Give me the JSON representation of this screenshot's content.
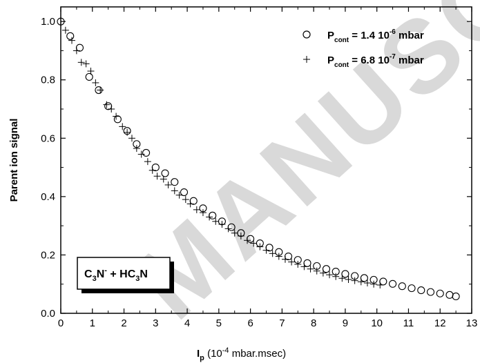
{
  "chart_data": {
    "type": "scatter",
    "xlabel": {
      "main": "I",
      "sub": "p",
      "pre": " (10",
      "sup": "-4",
      "post": " mbar.msec)"
    },
    "ylabel": "Parent ion signal",
    "xlim": [
      0,
      13
    ],
    "ylim": [
      0,
      1.05
    ],
    "x_ticks": [
      0,
      1,
      2,
      3,
      4,
      5,
      6,
      7,
      8,
      9,
      10,
      11,
      12,
      13
    ],
    "y_ticks": [
      0.0,
      0.2,
      0.4,
      0.6,
      0.8,
      1.0
    ],
    "y_tick_labels": [
      "0.0",
      "0.2",
      "0.4",
      "0.6",
      "0.8",
      "1.0"
    ],
    "grid": false,
    "legend_position": "top-right",
    "annotation": {
      "a": "C",
      "a_sub": "3",
      "b": "N",
      "b_sup": "-",
      "c": " + HC",
      "c_sub": "3",
      "d": "N"
    },
    "watermark": "MANUSC",
    "series": [
      {
        "name": {
          "p": "P",
          "sub": "cont",
          "val": " = 1.4 10",
          "sup": "-6",
          "unit": " mbar"
        },
        "marker": "circle",
        "x": [
          0.0,
          0.3,
          0.6,
          0.9,
          1.2,
          1.5,
          1.8,
          2.1,
          2.4,
          2.7,
          3.0,
          3.3,
          3.6,
          3.9,
          4.2,
          4.5,
          4.8,
          5.1,
          5.4,
          5.7,
          6.0,
          6.3,
          6.6,
          6.9,
          7.2,
          7.5,
          7.8,
          8.1,
          8.4,
          8.7,
          9.0,
          9.3,
          9.6,
          9.9,
          10.2,
          10.5,
          10.8,
          11.1,
          11.4,
          11.7,
          12.0,
          12.3,
          12.5
        ],
        "y": [
          1.0,
          0.95,
          0.91,
          0.81,
          0.765,
          0.71,
          0.665,
          0.625,
          0.58,
          0.55,
          0.5,
          0.48,
          0.45,
          0.415,
          0.385,
          0.36,
          0.335,
          0.315,
          0.295,
          0.275,
          0.255,
          0.24,
          0.225,
          0.21,
          0.195,
          0.183,
          0.172,
          0.162,
          0.152,
          0.143,
          0.135,
          0.128,
          0.121,
          0.115,
          0.109,
          0.101,
          0.093,
          0.086,
          0.079,
          0.073,
          0.068,
          0.063,
          0.058
        ]
      },
      {
        "name": {
          "p": "P",
          "sub": "cont",
          "val": " = 6.8 10",
          "sup": "-7",
          "unit": " mbar"
        },
        "marker": "plus",
        "x": [
          0.15,
          0.35,
          0.5,
          0.65,
          0.8,
          0.95,
          1.1,
          1.25,
          1.45,
          1.6,
          1.75,
          1.95,
          2.1,
          2.25,
          2.4,
          2.55,
          2.75,
          2.9,
          3.05,
          3.25,
          3.4,
          3.6,
          3.75,
          3.95,
          4.1,
          4.3,
          4.5,
          4.7,
          4.9,
          5.1,
          5.3,
          5.5,
          5.7,
          5.9,
          6.1,
          6.3,
          6.5,
          6.7,
          6.9,
          7.1,
          7.3,
          7.5,
          7.7,
          7.9,
          8.1,
          8.3,
          8.5,
          8.7,
          8.9,
          9.1,
          9.3,
          9.5,
          9.7,
          9.9,
          10.1
        ],
        "y": [
          0.97,
          0.935,
          0.9,
          0.86,
          0.855,
          0.83,
          0.79,
          0.765,
          0.715,
          0.7,
          0.675,
          0.64,
          0.62,
          0.6,
          0.565,
          0.545,
          0.52,
          0.49,
          0.47,
          0.46,
          0.44,
          0.42,
          0.405,
          0.39,
          0.375,
          0.355,
          0.345,
          0.33,
          0.315,
          0.305,
          0.29,
          0.275,
          0.265,
          0.25,
          0.24,
          0.228,
          0.216,
          0.205,
          0.195,
          0.185,
          0.176,
          0.168,
          0.16,
          0.152,
          0.145,
          0.138,
          0.132,
          0.126,
          0.12,
          0.116,
          0.112,
          0.108,
          0.104,
          0.1,
          0.097
        ]
      }
    ]
  }
}
